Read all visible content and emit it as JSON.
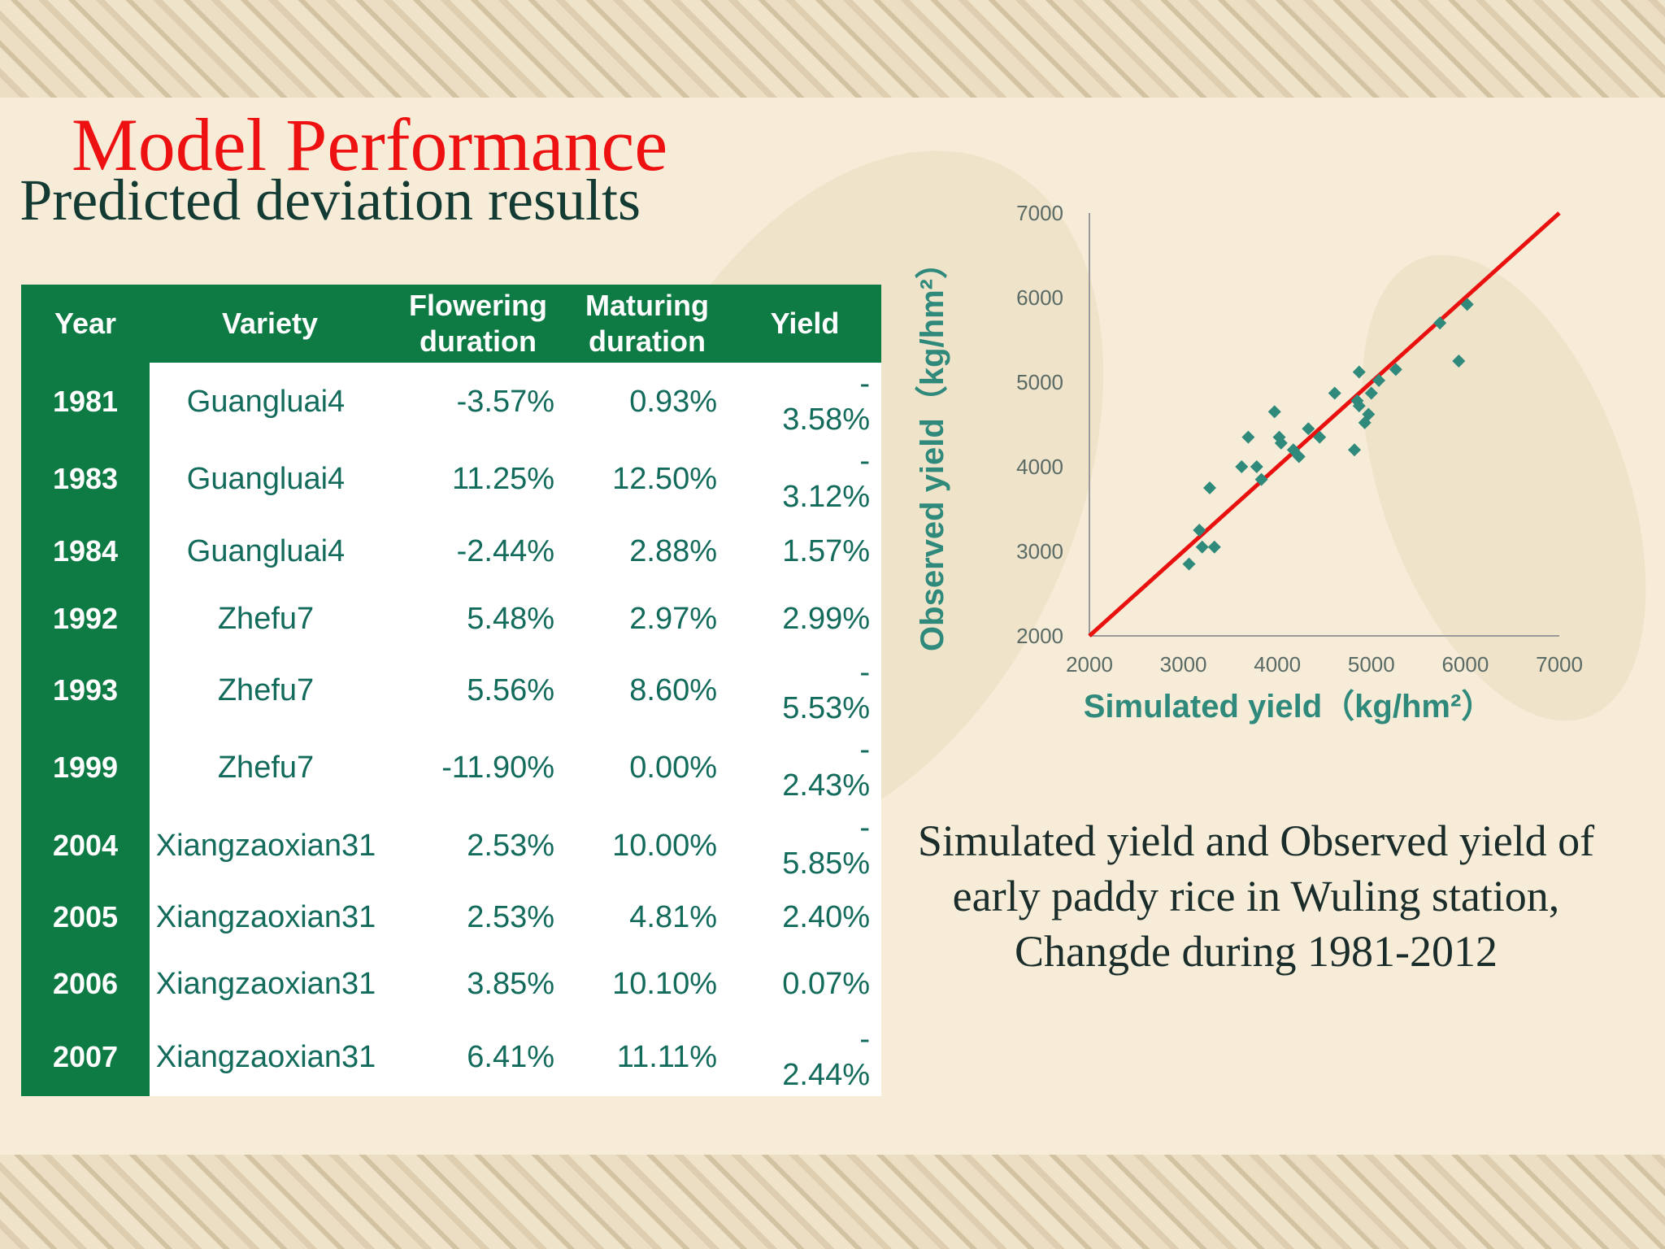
{
  "slide": {
    "title": "Model Performance",
    "subtitle": "Predicted deviation results",
    "caption": "Simulated yield and Observed yield of early paddy rice in Wuling station, Changde during 1981-2012"
  },
  "table": {
    "headers": [
      "Year",
      "Variety",
      "Flowering duration",
      "Maturing duration",
      "Yield"
    ],
    "rows": [
      {
        "year": "1981",
        "variety": "Guangluai4",
        "flowering": "-3.57%",
        "maturing": "0.93%",
        "yield": "-3.58%",
        "yield_sign": "-",
        "yield_abs": "3.58%"
      },
      {
        "year": "1983",
        "variety": "Guangluai4",
        "flowering": "11.25%",
        "maturing": "12.50%",
        "yield": "-3.12%",
        "yield_sign": "-",
        "yield_abs": "3.12%"
      },
      {
        "year": "1984",
        "variety": "Guangluai4",
        "flowering": "-2.44%",
        "maturing": "2.88%",
        "yield": "1.57%",
        "yield_sign": "",
        "yield_abs": "1.57%"
      },
      {
        "year": "1992",
        "variety": "Zhefu7",
        "flowering": "5.48%",
        "maturing": "2.97%",
        "yield": "2.99%",
        "yield_sign": "",
        "yield_abs": "2.99%"
      },
      {
        "year": "1993",
        "variety": "Zhefu7",
        "flowering": "5.56%",
        "maturing": "8.60%",
        "yield": "-5.53%",
        "yield_sign": "-",
        "yield_abs": "5.53%"
      },
      {
        "year": "1999",
        "variety": "Zhefu7",
        "flowering": "-11.90%",
        "maturing": "0.00%",
        "yield": "-2.43%",
        "yield_sign": "-",
        "yield_abs": "2.43%"
      },
      {
        "year": "2004",
        "variety": "Xiangzaoxian31",
        "flowering": "2.53%",
        "maturing": "10.00%",
        "yield": "-5.85%",
        "yield_sign": "-",
        "yield_abs": "5.85%"
      },
      {
        "year": "2005",
        "variety": "Xiangzaoxian31",
        "flowering": "2.53%",
        "maturing": "4.81%",
        "yield": "2.40%",
        "yield_sign": "",
        "yield_abs": "2.40%"
      },
      {
        "year": "2006",
        "variety": "Xiangzaoxian31",
        "flowering": "3.85%",
        "maturing": "10.10%",
        "yield": "0.07%",
        "yield_sign": "",
        "yield_abs": "0.07%"
      },
      {
        "year": "2007",
        "variety": "Xiangzaoxian31",
        "flowering": "6.41%",
        "maturing": "11.11%",
        "yield": "-2.44%",
        "yield_sign": "-",
        "yield_abs": "2.44%"
      }
    ]
  },
  "chart_data": {
    "type": "scatter",
    "title": "",
    "xlabel": "Simulated yield（kg/hm²）",
    "ylabel": "Observed yield（kg/hm²）",
    "xlim": [
      2000,
      7000
    ],
    "ylim": [
      2000,
      7000
    ],
    "x_ticks": [
      "2000",
      "3000",
      "4000",
      "5000",
      "6000",
      "7000"
    ],
    "y_ticks": [
      "2000",
      "3000",
      "4000",
      "5000",
      "6000",
      "7000"
    ],
    "reference_line": {
      "name": "1:1 line",
      "x": [
        2000,
        7000
      ],
      "y": [
        2000,
        7000
      ],
      "color": "#e8110f"
    },
    "marker_color": "#2f8a7c",
    "points": [
      {
        "x": 3060,
        "y": 2850
      },
      {
        "x": 3170,
        "y": 3250
      },
      {
        "x": 3200,
        "y": 3050
      },
      {
        "x": 3330,
        "y": 3050
      },
      {
        "x": 3280,
        "y": 3750
      },
      {
        "x": 3620,
        "y": 4000
      },
      {
        "x": 3690,
        "y": 4350
      },
      {
        "x": 3780,
        "y": 4000
      },
      {
        "x": 3830,
        "y": 3850
      },
      {
        "x": 3970,
        "y": 4650
      },
      {
        "x": 4020,
        "y": 4350
      },
      {
        "x": 4040,
        "y": 4280
      },
      {
        "x": 4170,
        "y": 4200
      },
      {
        "x": 4230,
        "y": 4120
      },
      {
        "x": 4330,
        "y": 4450
      },
      {
        "x": 4450,
        "y": 4350
      },
      {
        "x": 4610,
        "y": 4870
      },
      {
        "x": 4820,
        "y": 4200
      },
      {
        "x": 4850,
        "y": 4780
      },
      {
        "x": 4870,
        "y": 4720
      },
      {
        "x": 4870,
        "y": 5120
      },
      {
        "x": 4930,
        "y": 4520
      },
      {
        "x": 4970,
        "y": 4620
      },
      {
        "x": 5000,
        "y": 4870
      },
      {
        "x": 5080,
        "y": 5020
      },
      {
        "x": 5260,
        "y": 5150
      },
      {
        "x": 5730,
        "y": 5700
      },
      {
        "x": 5930,
        "y": 5250
      },
      {
        "x": 6020,
        "y": 5920
      }
    ]
  }
}
